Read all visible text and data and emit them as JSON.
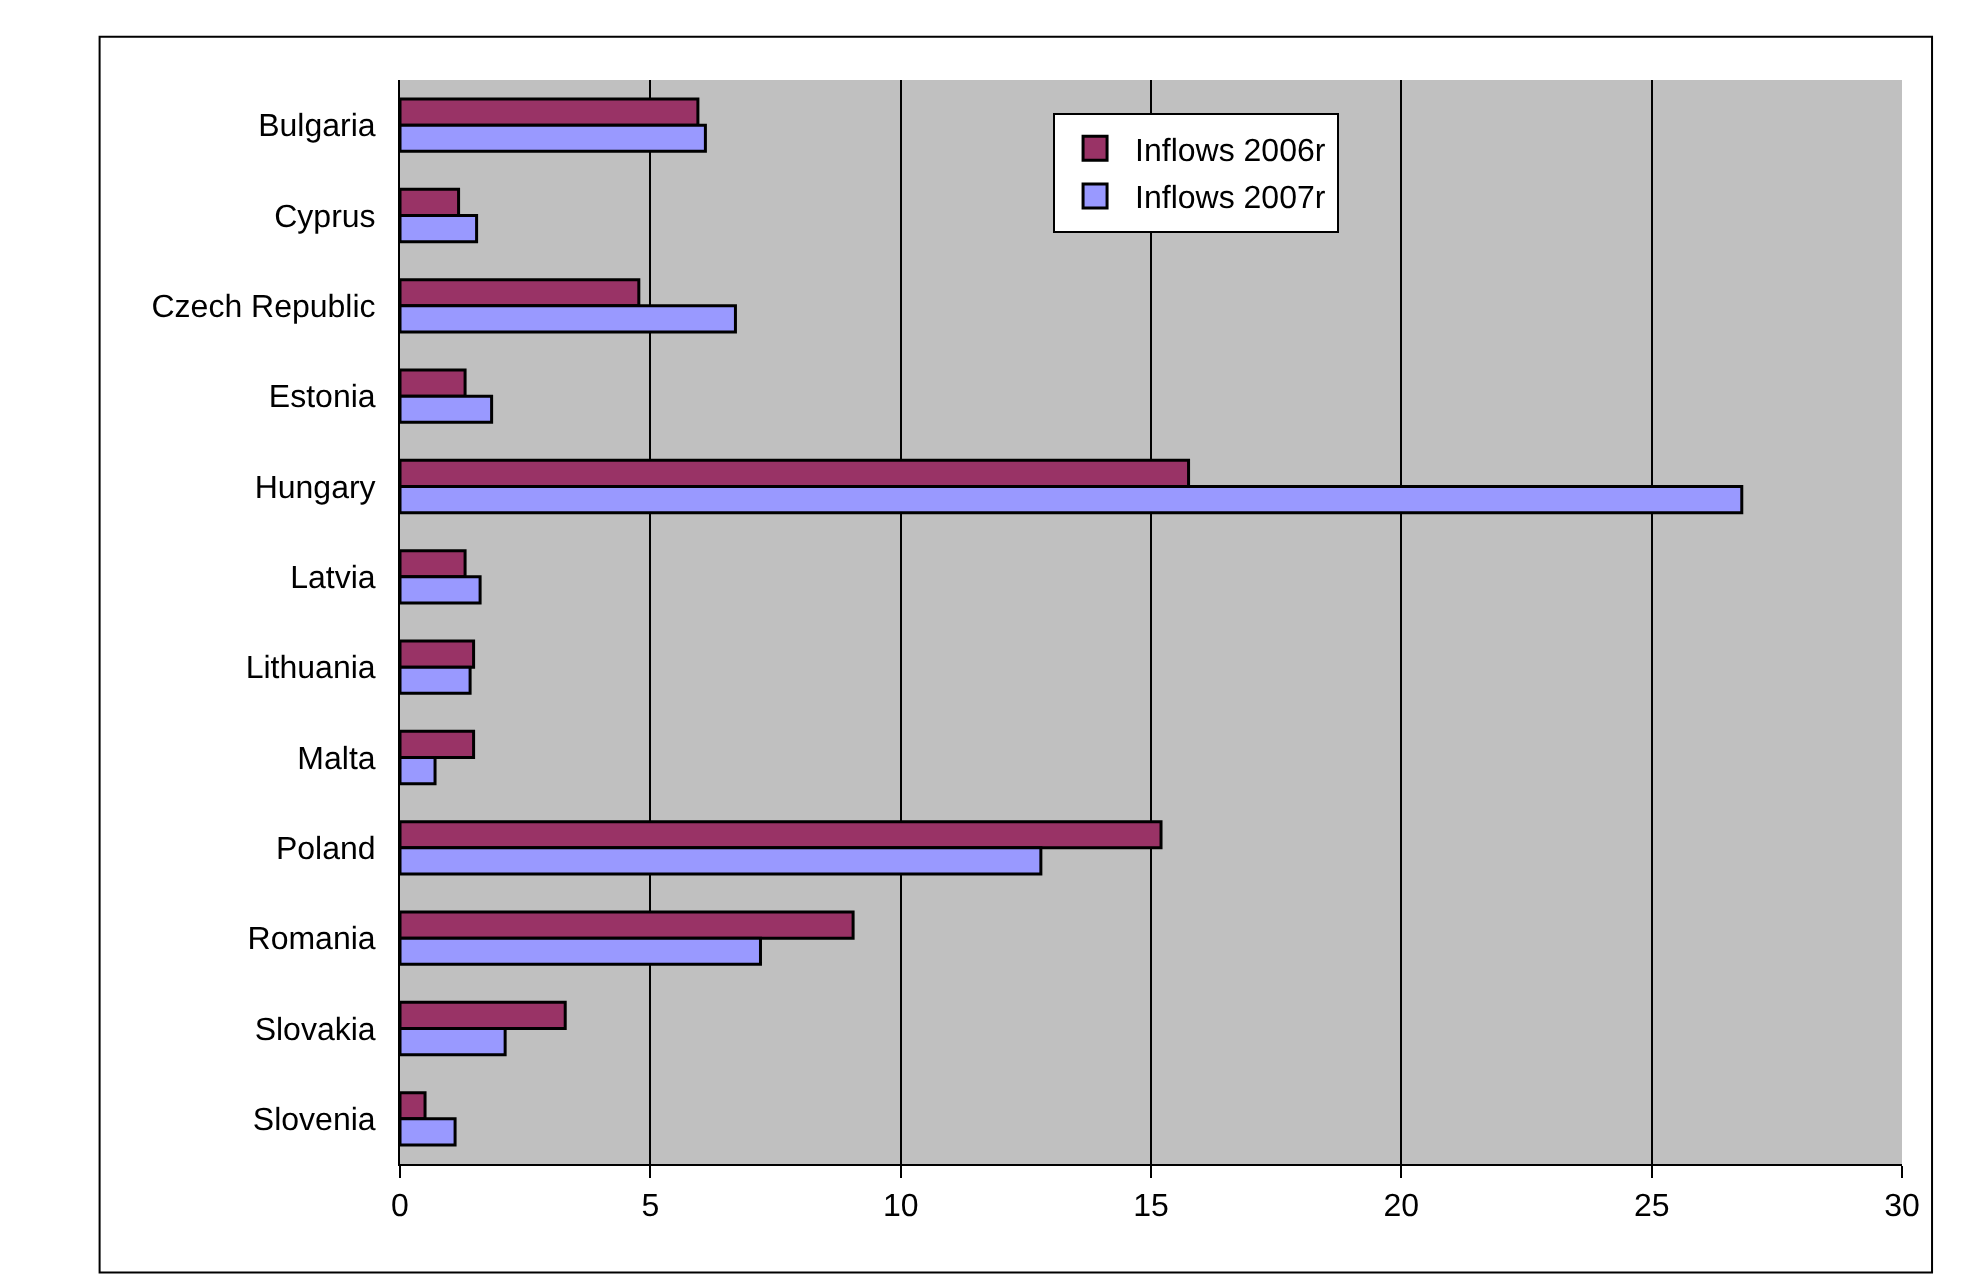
{
  "chart_data": {
    "type": "bar",
    "orientation": "horizontal",
    "categories": [
      "Bulgaria",
      "Cyprus",
      "Czech Republic",
      "Estonia",
      "Hungary",
      "Latvia",
      "Lithuania",
      "Malta",
      "Poland",
      "Romania",
      "Slovakia",
      "Slovenia"
    ],
    "series": [
      {
        "name": "Inflows 2006r",
        "color": "#993366",
        "values": [
          5.95,
          1.17,
          4.77,
          1.3,
          15.75,
          1.3,
          1.47,
          1.47,
          15.2,
          9.05,
          3.3,
          0.5
        ]
      },
      {
        "name": "Inflows 2007r",
        "color": "#9999ff",
        "values": [
          6.1,
          1.53,
          6.7,
          1.83,
          26.8,
          1.6,
          1.4,
          0.7,
          12.8,
          7.2,
          2.1,
          1.1
        ]
      }
    ],
    "xlim": [
      0,
      30
    ],
    "xticks": [
      0,
      5,
      10,
      15,
      20,
      25,
      30
    ],
    "grid": "x",
    "legend": "top"
  }
}
